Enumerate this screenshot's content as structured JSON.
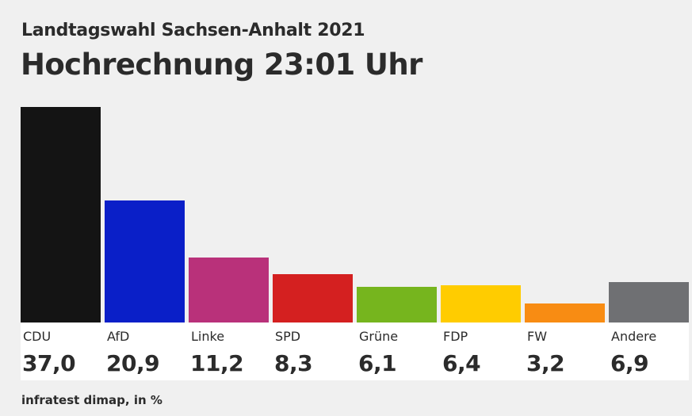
{
  "header": {
    "subtitle": "Landtagswahl Sachsen-Anhalt 2021",
    "title": "Hochrechnung 23:01 Uhr"
  },
  "source": "infratest dimap, in %",
  "chart_data": {
    "type": "bar",
    "title": "Hochrechnung 23:01 Uhr",
    "subtitle": "Landtagswahl Sachsen-Anhalt 2021",
    "xlabel": "",
    "ylabel": "",
    "unit": "%",
    "categories": [
      "CDU",
      "AfD",
      "Linke",
      "SPD",
      "Grüne",
      "FDP",
      "FW",
      "Andere"
    ],
    "values": [
      37.0,
      20.9,
      11.2,
      8.3,
      6.1,
      6.4,
      3.2,
      6.9
    ],
    "value_labels": [
      "37,0",
      "20,9",
      "11,2",
      "8,3",
      "6,1",
      "6,4",
      "3,2",
      "6,9"
    ],
    "colors": [
      "#141414",
      "#0a1fc8",
      "#b9317a",
      "#d42020",
      "#76b51e",
      "#ffcc00",
      "#f88c13",
      "#6f7073"
    ],
    "ylim": [
      0,
      37.0
    ],
    "grid": false,
    "legend": "none"
  }
}
